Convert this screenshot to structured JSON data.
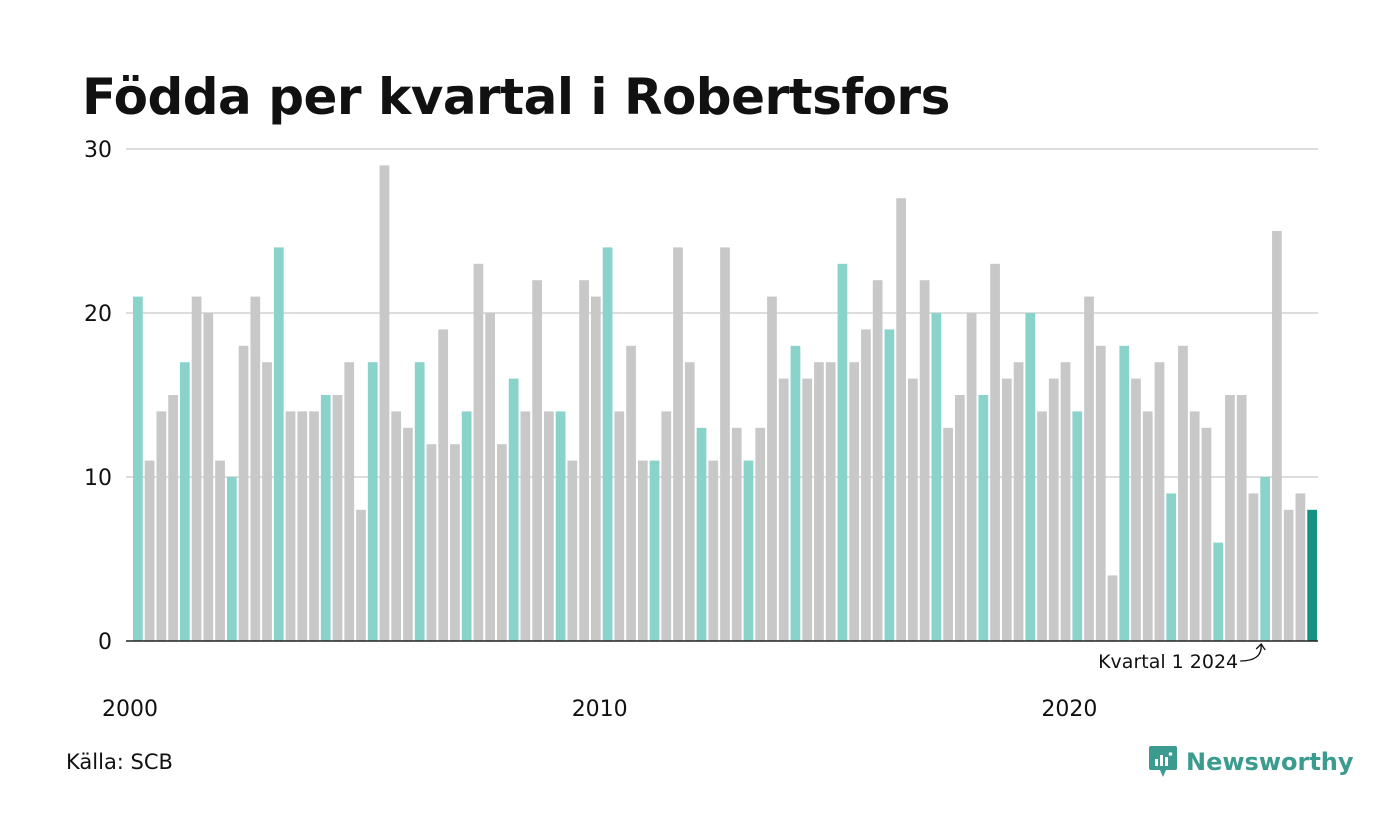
{
  "title": "Födda per kvartal i Robertsfors",
  "source": "Källa: SCB",
  "brand": {
    "name": "Newsworthy",
    "icon": "newsworthy-logo-icon",
    "color": "#3a9b8e"
  },
  "colors": {
    "q1": "#8ad3cb",
    "other": "#c8c8c8",
    "highlight": "#159083",
    "grid": "#dddddd",
    "axis": "#222222"
  },
  "chart_data": {
    "type": "bar",
    "title": "Födda per kvartal i Robertsfors",
    "x_start": {
      "year": 2000,
      "quarter": 1
    },
    "x_ticks": [
      "2000",
      "2010",
      "2020"
    ],
    "y_ticks": [
      "0",
      "10",
      "20",
      "30"
    ],
    "ylim": [
      0,
      30
    ],
    "grid": true,
    "annotation": "Kvartal 1 2024",
    "values": [
      21,
      11,
      14,
      15,
      17,
      21,
      20,
      11,
      10,
      18,
      21,
      17,
      24,
      14,
      14,
      14,
      15,
      15,
      17,
      8,
      17,
      29,
      14,
      13,
      17,
      12,
      19,
      12,
      14,
      23,
      20,
      12,
      16,
      14,
      22,
      14,
      14,
      11,
      22,
      21,
      24,
      14,
      18,
      11,
      11,
      14,
      24,
      17,
      13,
      11,
      24,
      13,
      11,
      13,
      21,
      16,
      18,
      16,
      17,
      17,
      23,
      17,
      19,
      22,
      19,
      27,
      16,
      22,
      20,
      13,
      15,
      20,
      15,
      23,
      16,
      17,
      20,
      14,
      16,
      17,
      14,
      21,
      18,
      4,
      18,
      16,
      14,
      17,
      9,
      18,
      14,
      13,
      6,
      15,
      15,
      9,
      10,
      25,
      8,
      9,
      8
    ]
  }
}
